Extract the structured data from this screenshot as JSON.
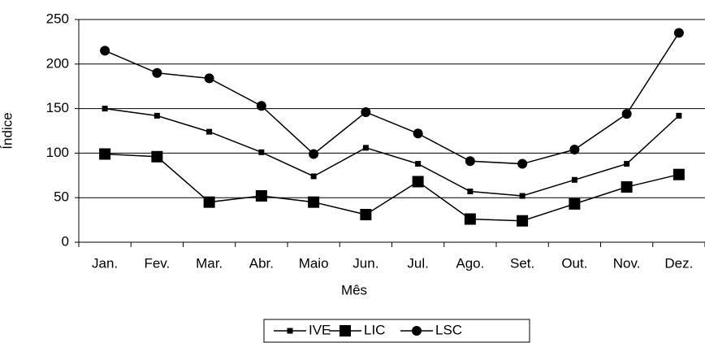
{
  "chart_data": {
    "type": "line",
    "x_label": "Mês",
    "y_label": "Índice",
    "categories": [
      "Jan.",
      "Fev.",
      "Mar.",
      "Abr.",
      "Maio",
      "Jun.",
      "Jul.",
      "Ago.",
      "Set.",
      "Out.",
      "Nov.",
      "Dez."
    ],
    "series": [
      {
        "name": "IVE",
        "color": "#000000",
        "marker": "small-square",
        "values": [
          150,
          142,
          124,
          101,
          74,
          106,
          88,
          57,
          52,
          70,
          88,
          142
        ]
      },
      {
        "name": "LIC",
        "color": "#000000",
        "marker": "large-square",
        "values": [
          99,
          96,
          45,
          52,
          45,
          31,
          68,
          26,
          24,
          43,
          62,
          76
        ]
      },
      {
        "name": "LSC",
        "color": "#000000",
        "marker": "circle",
        "values": [
          215,
          190,
          184,
          153,
          99,
          146,
          122,
          91,
          88,
          104,
          144,
          235
        ]
      }
    ],
    "ylim": [
      0,
      250
    ],
    "yticks": [
      0,
      50,
      100,
      150,
      200,
      250
    ],
    "grid": true,
    "legend": "bottom"
  }
}
